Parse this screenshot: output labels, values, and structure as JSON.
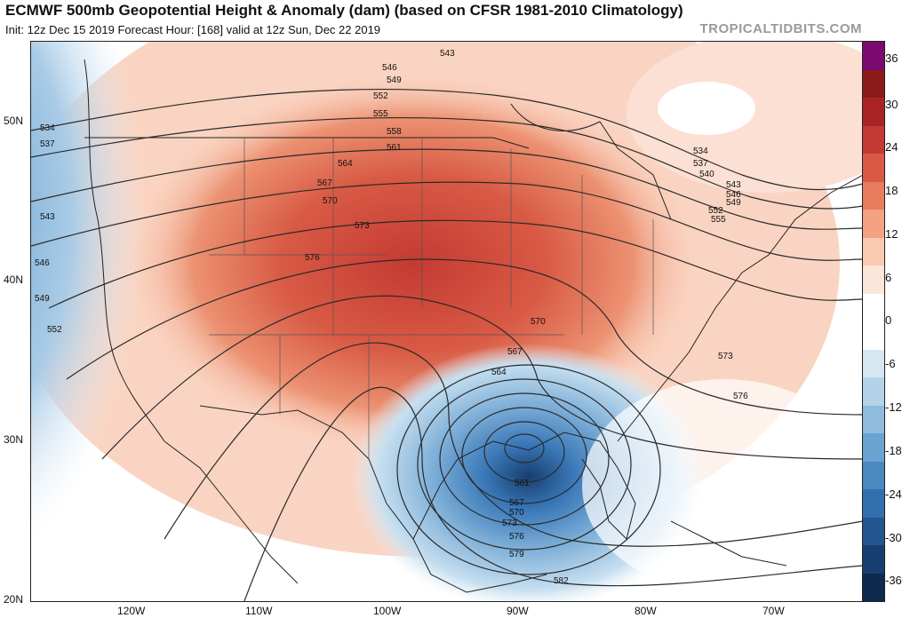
{
  "header": {
    "title": "ECMWF 500mb Geopotential Height & Anomaly (dam) (based on CFSR 1981-2010 Climatology)",
    "subtitle": "Init: 12z Dec 15 2019   Forecast Hour: [168]   valid at 12z Sun, Dec 22 2019",
    "brand": "TROPICALTIDBITS.COM"
  },
  "colorbar": {
    "labels": [
      "36",
      "30",
      "24",
      "18",
      "12",
      "6",
      "0",
      "-6",
      "-12",
      "-18",
      "-24",
      "-30",
      "-36"
    ],
    "colors": [
      "#7a0a6e",
      "#8b1a1a",
      "#a82424",
      "#c43a32",
      "#d85a45",
      "#e97c5f",
      "#f3a283",
      "#f9c9b0",
      "#fce6da",
      "#ffffff",
      "#ffffff",
      "#d6e7f2",
      "#b4d3e8",
      "#8fbcdc",
      "#6aa3cf",
      "#4a89c0",
      "#336fae",
      "#23558f",
      "#173e6e",
      "#0e2a4d"
    ]
  },
  "axes": {
    "lat_labels": [
      "50N",
      "40N",
      "30N",
      "20N"
    ],
    "lon_labels": [
      "120W",
      "110W",
      "100W",
      "90W",
      "80W",
      "70W"
    ]
  },
  "contours": {
    "labels": [
      "534",
      "537",
      "543",
      "546",
      "549",
      "552",
      "543",
      "546",
      "549",
      "552",
      "555",
      "558",
      "561",
      "564",
      "567",
      "570",
      "573",
      "576",
      "534",
      "537",
      "540",
      "543",
      "546",
      "549",
      "552",
      "555",
      "570",
      "573",
      "576",
      "567",
      "564",
      "561",
      "567",
      "570",
      "573",
      "576",
      "579",
      "582"
    ]
  },
  "colors": {
    "ridge": "#d9563f",
    "trough": "#2f6fb0",
    "land_border": "#222222"
  }
}
